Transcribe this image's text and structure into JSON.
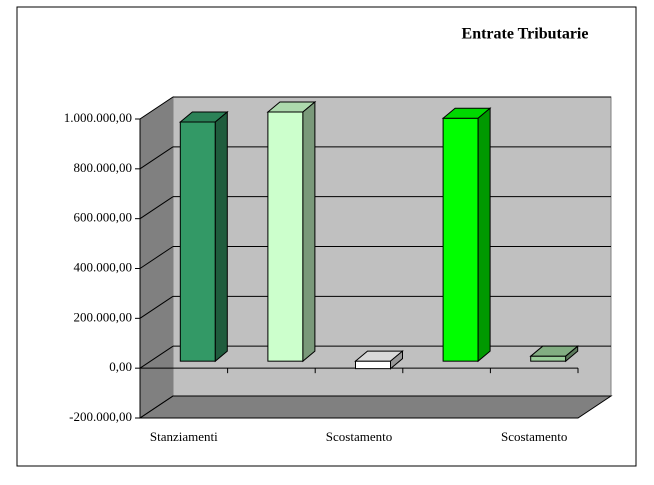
{
  "chart_data": {
    "type": "bar3d",
    "title": "Entrate Tributarie",
    "categories": [
      "Stanziamenti",
      null,
      "Scostamento",
      null,
      "Scostamento"
    ],
    "values": [
      960000,
      1000000,
      -30000,
      975000,
      20000
    ],
    "colors": [
      "#339966",
      "#ccffcc",
      "#ffffff",
      "#00ff00",
      "#99cc99"
    ],
    "ylim": [
      -200000,
      1000000
    ],
    "yticks": [
      {
        "value": -200000,
        "label": "-200.000,00"
      },
      {
        "value": 0,
        "label": "0,00"
      },
      {
        "value": 200000,
        "label": "200.000,00"
      },
      {
        "value": 400000,
        "label": "400.000,00"
      },
      {
        "value": 600000,
        "label": "600.000,00"
      },
      {
        "value": 800000,
        "label": "800.000,00"
      },
      {
        "value": 1000000,
        "label": "1.000.000,00"
      }
    ],
    "grid": true
  }
}
